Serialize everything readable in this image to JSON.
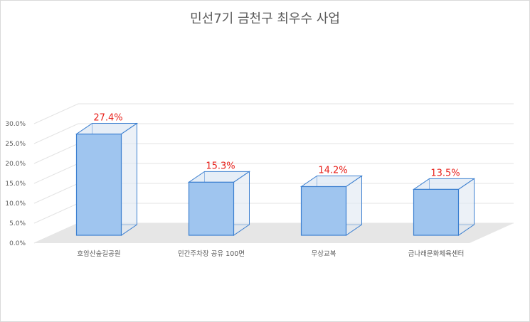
{
  "chart_data": {
    "type": "bar",
    "title": "민선7기 금천구 최우수 사업",
    "categories": [
      "호암산숲길공원",
      "민간주차장 공유 100면",
      "무상교복",
      "금나래문화체육센터"
    ],
    "values": [
      27.4,
      15.3,
      14.2,
      13.5
    ],
    "data_labels": [
      "27.4%",
      "15.3%",
      "14.2%",
      "13.5%"
    ],
    "y_ticks": [
      0,
      5,
      10,
      15,
      20,
      25,
      30
    ],
    "y_tick_labels": [
      "0.0%",
      "5.0%",
      "10.0%",
      "15.0%",
      "20.0%",
      "25.0%",
      "30.0%"
    ],
    "ylim": [
      0,
      30
    ],
    "grid": true,
    "legend": "none",
    "style": "3d-column",
    "colors": {
      "bar_face": "#9fc5ef",
      "bar_edge": "#3b7fd0",
      "floor": "#e6e6e6",
      "grid": "#e3e3e3",
      "label": "#e8201a",
      "text": "#595959"
    }
  }
}
